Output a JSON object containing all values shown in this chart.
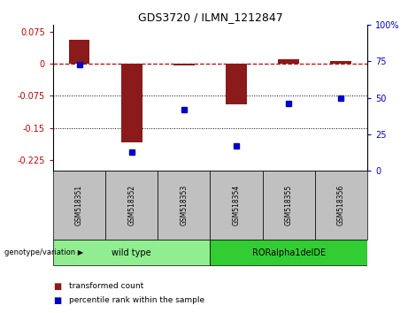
{
  "title": "GDS3720 / ILMN_1212847",
  "samples": [
    "GSM518351",
    "GSM518352",
    "GSM518353",
    "GSM518354",
    "GSM518355",
    "GSM518356"
  ],
  "bar_values": [
    0.055,
    -0.185,
    -0.005,
    -0.095,
    0.01,
    0.005
  ],
  "percentile_values": [
    73,
    13,
    42,
    17,
    46,
    50
  ],
  "ylim_left": [
    -0.25,
    0.09
  ],
  "ylim_right": [
    0,
    100
  ],
  "yticks_left": [
    0.075,
    0,
    -0.075,
    -0.15,
    -0.225
  ],
  "yticks_right": [
    100,
    75,
    50,
    25,
    0
  ],
  "bar_color": "#8B1A1A",
  "percentile_color": "#0000CC",
  "dashed_line_color": "#CC0000",
  "dotted_line_color": "#000000",
  "group1_label": "wild type",
  "group2_label": "RORalpha1delDE",
  "group1_color": "#90EE90",
  "group2_color": "#32CD32",
  "genotype_label": "genotype/variation",
  "legend_bar_label": "transformed count",
  "legend_pct_label": "percentile rank within the sample",
  "group1_samples": [
    0,
    1,
    2
  ],
  "group2_samples": [
    3,
    4,
    5
  ],
  "xlabel_bg_color": "#C0C0C0",
  "bar_width": 0.4
}
